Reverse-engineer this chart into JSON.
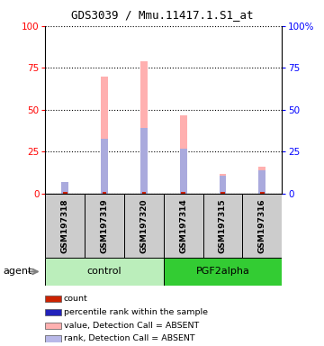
{
  "title": "GDS3039 / Mmu.11417.1.S1_at",
  "samples": [
    "GSM197318",
    "GSM197319",
    "GSM197320",
    "GSM197314",
    "GSM197315",
    "GSM197316"
  ],
  "groups": [
    "control",
    "control",
    "control",
    "PGF2alpha",
    "PGF2alpha",
    "PGF2alpha"
  ],
  "pink_bars": [
    7,
    70,
    79,
    47,
    12,
    16
  ],
  "blue_bars": [
    7,
    33,
    39,
    27,
    11,
    14
  ],
  "red_vals": [
    1,
    1,
    1,
    1,
    1,
    1
  ],
  "ylim": [
    0,
    100
  ],
  "yticks": [
    0,
    25,
    50,
    75,
    100
  ],
  "plot_bg": "#ffffff",
  "pink_bar_color": "#ffb0b0",
  "blue_bar_color": "#aaaadd",
  "red_bar_color": "#cc2200",
  "control_bg_light": "#bbeebb",
  "control_bg_dark": "#44cc44",
  "pgf_bg": "#33cc33",
  "sample_box_color": "#cccccc",
  "agent_label": "agent",
  "control_label": "control",
  "pgf_label": "PGF2alpha",
  "legend_items": [
    {
      "color": "#cc2200",
      "label": "count"
    },
    {
      "color": "#2222bb",
      "label": "percentile rank within the sample"
    },
    {
      "color": "#ffb0b0",
      "label": "value, Detection Call = ABSENT"
    },
    {
      "color": "#b8b8e8",
      "label": "rank, Detection Call = ABSENT"
    }
  ]
}
